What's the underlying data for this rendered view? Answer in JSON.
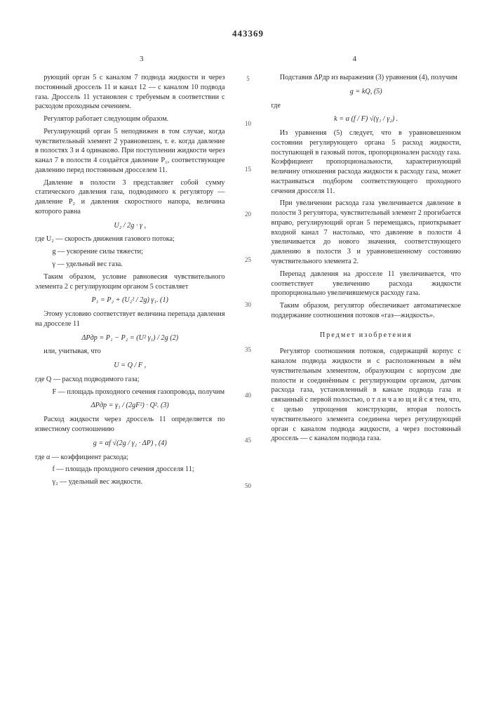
{
  "docNumber": "443369",
  "colLeftNum": "3",
  "colRightNum": "4",
  "lineNumbers": [
    "5",
    "10",
    "15",
    "20",
    "25",
    "30",
    "35",
    "40",
    "45",
    "50"
  ],
  "left": {
    "p1": "рующий орган 5 с каналом 7 подвода жидкости и через постоянный дроссель 11 и канал 12 — с каналом 10 подвода газа. Дроссель 11 установлен с требуемым в соответствии с расходом проходным сечением.",
    "p2": "Регулятор работает следующим образом.",
    "p3": "Регулирующий орган 5 неподвижен в том случае, когда чувствительный элемент 2 уравновешен, т. е. когда давление в полостях 3 и 4 одинаково. При поступлении жидкости через канал 7 в полости 4 создаётся давление P₁, соответствующее давлению перед постоянным дросселем 11.",
    "p4": "Давление в полости 3 представляет собой сумму статического давления газа, подводимого к регулятору — давление P₂ и давления скоростного напора, величина которого равна",
    "f1": "U₂ / 2g · γ ,",
    "p5": "где U₂ — скорость движения газового потока;",
    "p5b": "g — ускорение силы тяжести;",
    "p5c": "γ — удельный вес газа.",
    "p6": "Таким образом, условие равновесия чувствительного элемента 2 с регулирующим органом 5 составляет",
    "f2": "P₁ = P₂ + (U₂² / 2g) γ₁.      (1)",
    "p7": "Этому условию соответствует величина перепада давления на дросселе 11",
    "f3": "ΔPдр = P₁ − P₂ = (U² γ₁) / 2g      (2)",
    "p8": "или, учитывая, что",
    "f4": "U = Q / F ,",
    "p9": "где Q — расход подводимого газа;",
    "p9b": "F — площадь проходного сечения газопровода, получим",
    "f5": "ΔPдр = γ₁ / (2gF²) · Q².      (3)",
    "p10": "Расход жидкости через дроссель 11 определяется по известному соотношению",
    "f6": "g = αf √(2g / γ₂ · ΔP) ,      (4)",
    "p11": "где α — коэффициент расхода;",
    "p11b": "f — площадь проходного сечения дросселя 11;",
    "p11c": "γ₂ — удельный вес жидкости."
  },
  "right": {
    "p1": "Подставив ΔPдр из выражения (3) уравнения (4), получим",
    "f1": "g = kQ,      (5)",
    "p2": "где",
    "f2": "k = α (f / F) √(γ₁ / γ₂) .",
    "p3": "Из уравнения (5) следует, что в уравновешенном состоянии регулирующего органа 5 расход жидкости, поступающей в газовый поток, пропорционален расходу газа. Коэффициент пропорциональности, характеризующий величину отношения расхода жидкости к расходу газа, может настраиваться подбором соответствующего проходного сечения дросселя 11.",
    "p4": "При увеличении расхода газа увеличивается давление в полости 3 регулятора, чувствительный элемент 2 прогибается вправо, регулирующий орган 5 перемещаясь, приоткрывает входной канал 7 настолько, что давление в полости 4 увеличивается до нового значения, соответствующего давлению в полости 3 и уравновешенному состоянию чувствительного элемента 2.",
    "p5": "Перепад давления на дросселе 11 увеличивается, что соответствует увеличению расхода жидкости пропорционально увеличившемуся расходу газа.",
    "p6": "Таким образом, регулятор обеспечивает автоматическое поддержание соотношения потоков «газ—жидкость».",
    "sectionTitle": "Предмет изобретения",
    "claim": "Регулятор соотношения потоков, содержащий корпус с каналом подвода жидкости и с расположенным в нём чувствительным элементом, образующим с корпусом две полости и соединённым с регулирующим органом, датчик расхода газа, установленный в канале подвода газа и связанный с первой полостью, о т л и ч а ю щ и й с я  тем, что, с целью упрощения конструкции, вторая полость чувствительного элемента соединена через регулирующий орган с каналом подвода жидкости, а через постоянный дроссель — с каналом подвода газа."
  }
}
